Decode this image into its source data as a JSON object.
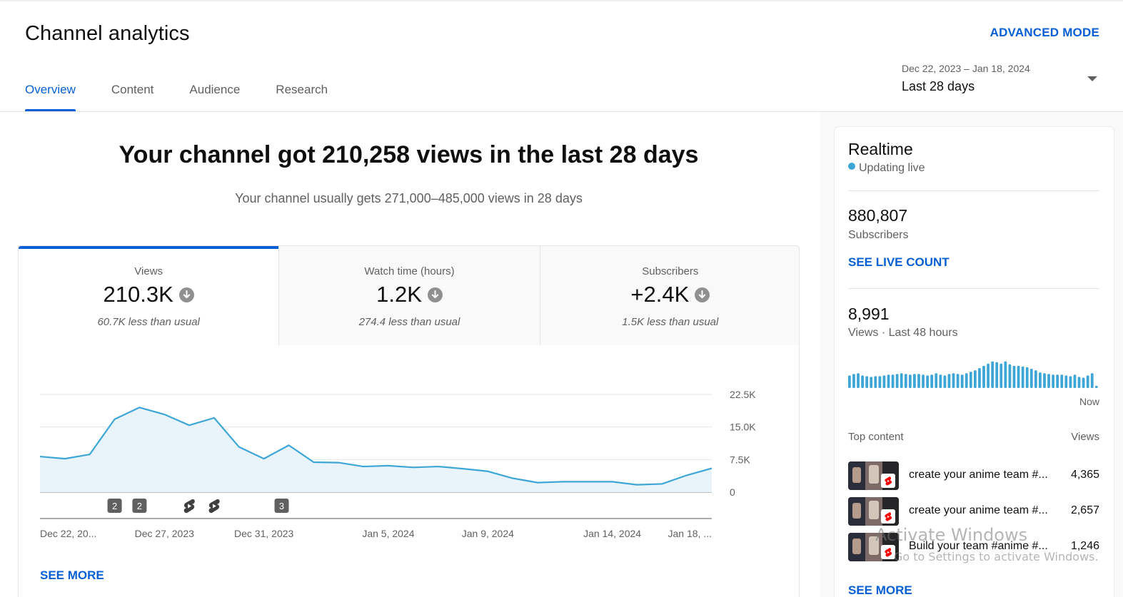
{
  "header": {
    "title": "Channel analytics",
    "advanced_mode": "ADVANCED MODE",
    "tabs": [
      {
        "label": "Overview",
        "active": true
      },
      {
        "label": "Content",
        "active": false
      },
      {
        "label": "Audience",
        "active": false
      },
      {
        "label": "Research",
        "active": false
      }
    ],
    "date_range": {
      "dates": "Dec 22, 2023 – Jan 18, 2024",
      "label": "Last 28 days"
    }
  },
  "overview": {
    "headline": "Your channel got 210,258 views in the last 28 days",
    "subline": "Your channel usually gets 271,000–485,000 views in 28 days",
    "metrics": [
      {
        "label": "Views",
        "value": "210.3K",
        "note": "60.7K less than usual",
        "trend": "down",
        "selected": true
      },
      {
        "label": "Watch time (hours)",
        "value": "1.2K",
        "note": "274.4 less than usual",
        "trend": "down",
        "selected": false
      },
      {
        "label": "Subscribers",
        "value": "+2.4K",
        "note": "1.5K less than usual",
        "trend": "down",
        "selected": false
      }
    ],
    "see_more": "SEE MORE"
  },
  "chart_data": {
    "type": "area",
    "series": [
      {
        "values": [
          8200,
          7700,
          8700,
          16800,
          19500,
          17900,
          15400,
          17100,
          10400,
          7700,
          10800,
          6900,
          6800,
          5900,
          6100,
          5700,
          5900,
          5400,
          4800,
          3200,
          2200,
          2400,
          2400,
          2400,
          1700,
          1900,
          3900,
          5500
        ]
      }
    ],
    "x_tick_labels": [
      "Dec 22, 20...",
      "Dec 27, 2023",
      "Dec 31, 2023",
      "Jan 5, 2024",
      "Jan 9, 2024",
      "Jan 14, 2024",
      "Jan 18, ..."
    ],
    "x_tick_indices": [
      0,
      5,
      9,
      14,
      18,
      23,
      27
    ],
    "y_tick_labels": [
      "22.5K",
      "15.0K",
      "7.5K",
      "0"
    ],
    "y_ticks": [
      22500,
      15000,
      7500,
      0
    ],
    "ylim": [
      0,
      22500
    ],
    "grid": true,
    "line_color": "#3ea6d6",
    "fill_color": "#e8f4fa",
    "markers": [
      {
        "index": 3,
        "kind": "number",
        "label": "2"
      },
      {
        "index": 4,
        "kind": "number",
        "label": "2"
      },
      {
        "index": 6,
        "kind": "shorts"
      },
      {
        "index": 7,
        "kind": "shorts"
      },
      {
        "index": 10,
        "kind": "number",
        "label": "3"
      }
    ]
  },
  "realtime": {
    "title": "Realtime",
    "status": "Updating live",
    "subscribers_value": "880,807",
    "subscribers_label": "Subscribers",
    "see_live_count": "SEE LIVE COUNT",
    "views_value": "8,991",
    "views_label": "Views · Last 48 hours",
    "bars": [
      17,
      19,
      20,
      17,
      16,
      15,
      16,
      16,
      17,
      18,
      18,
      19,
      20,
      19,
      18,
      19,
      19,
      18,
      17,
      18,
      20,
      18,
      17,
      19,
      20,
      19,
      18,
      20,
      22,
      24,
      27,
      30,
      33,
      36,
      35,
      33,
      36,
      32,
      30,
      30,
      29,
      28,
      26,
      24,
      21,
      20,
      19,
      18,
      18,
      18,
      17,
      16,
      18,
      15,
      14,
      17,
      20,
      3
    ],
    "now_label": "Now",
    "bar_color": "#3ea6d6",
    "top_content_label": "Top content",
    "views_col_label": "Views",
    "top_content": [
      {
        "title": "create your anime team #...",
        "views": "4,365"
      },
      {
        "title": "create your anime team #...",
        "views": "2,657"
      },
      {
        "title": "Build your team #anime #...",
        "views": "1,246"
      }
    ],
    "see_more": "SEE MORE"
  },
  "overlay": {
    "watermark_title": "Activate Windows",
    "watermark_sub": "Go to Settings to activate Windows."
  },
  "colors": {
    "accent": "#065fd4",
    "chart_line": "#3ea6d6",
    "secondary_text": "#606060"
  }
}
